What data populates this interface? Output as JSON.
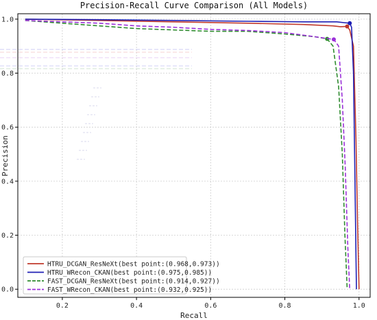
{
  "chart_data": {
    "type": "line",
    "title": "Precision-Recall Curve Comparison (All Models)",
    "xlabel": "Recall",
    "ylabel": "Precision",
    "xlim": [
      0.08,
      1.03
    ],
    "ylim": [
      -0.03,
      1.02
    ],
    "xticks": [
      "0.2",
      "0.4",
      "0.6",
      "0.8",
      "1.0"
    ],
    "yticks": [
      "0.0",
      "0.2",
      "0.4",
      "0.6",
      "0.8",
      "1.0"
    ],
    "grid": true,
    "legend_position": "lower-left",
    "series": [
      {
        "name": "HTRU_DCGAN_ResNeXt(best point:(0.968,0.973))",
        "color": "#c0392b",
        "dash": "solid",
        "best_point": [
          0.968,
          0.973
        ],
        "x": [
          0.1,
          0.3,
          0.5,
          0.7,
          0.85,
          0.93,
          0.95,
          0.968,
          0.975,
          0.985,
          0.992,
          0.996,
          1.0
        ],
        "y": [
          1.0,
          0.995,
          0.99,
          0.985,
          0.98,
          0.975,
          0.972,
          0.973,
          0.96,
          0.9,
          0.55,
          0.25,
          0.0
        ]
      },
      {
        "name": "HTRU_WRecon_CKAN(best point:(0.975,0.985))",
        "color": "#1f1fb4",
        "dash": "solid",
        "best_point": [
          0.975,
          0.985
        ],
        "x": [
          0.1,
          0.3,
          0.5,
          0.7,
          0.85,
          0.94,
          0.96,
          0.975,
          0.98,
          0.985,
          0.99,
          0.993
        ],
        "y": [
          1.0,
          0.998,
          0.995,
          0.992,
          0.99,
          0.99,
          0.987,
          0.985,
          0.97,
          0.8,
          0.3,
          0.0
        ]
      },
      {
        "name": "FAST_DCGAN_ResNeXt(best point:(0.914,0.927))",
        "color": "#2e8b2e",
        "dash": "dashed",
        "best_point": [
          0.914,
          0.927
        ],
        "x": [
          0.1,
          0.2,
          0.3,
          0.4,
          0.5,
          0.6,
          0.7,
          0.8,
          0.88,
          0.914,
          0.93,
          0.945,
          0.955,
          0.962,
          0.968
        ],
        "y": [
          0.995,
          0.985,
          0.975,
          0.965,
          0.96,
          0.955,
          0.955,
          0.945,
          0.935,
          0.927,
          0.9,
          0.75,
          0.5,
          0.2,
          0.0
        ]
      },
      {
        "name": "FAST_WRecon_CKAN(best point:(0.932,0.925))",
        "color": "#9b30d9",
        "dash": "dashed",
        "best_point": [
          0.932,
          0.925
        ],
        "x": [
          0.1,
          0.2,
          0.3,
          0.4,
          0.5,
          0.6,
          0.7,
          0.8,
          0.88,
          0.932,
          0.945,
          0.955,
          0.963,
          0.97,
          0.975
        ],
        "y": [
          0.995,
          0.99,
          0.985,
          0.975,
          0.97,
          0.962,
          0.958,
          0.95,
          0.935,
          0.925,
          0.9,
          0.7,
          0.45,
          0.15,
          0.0
        ]
      }
    ]
  }
}
